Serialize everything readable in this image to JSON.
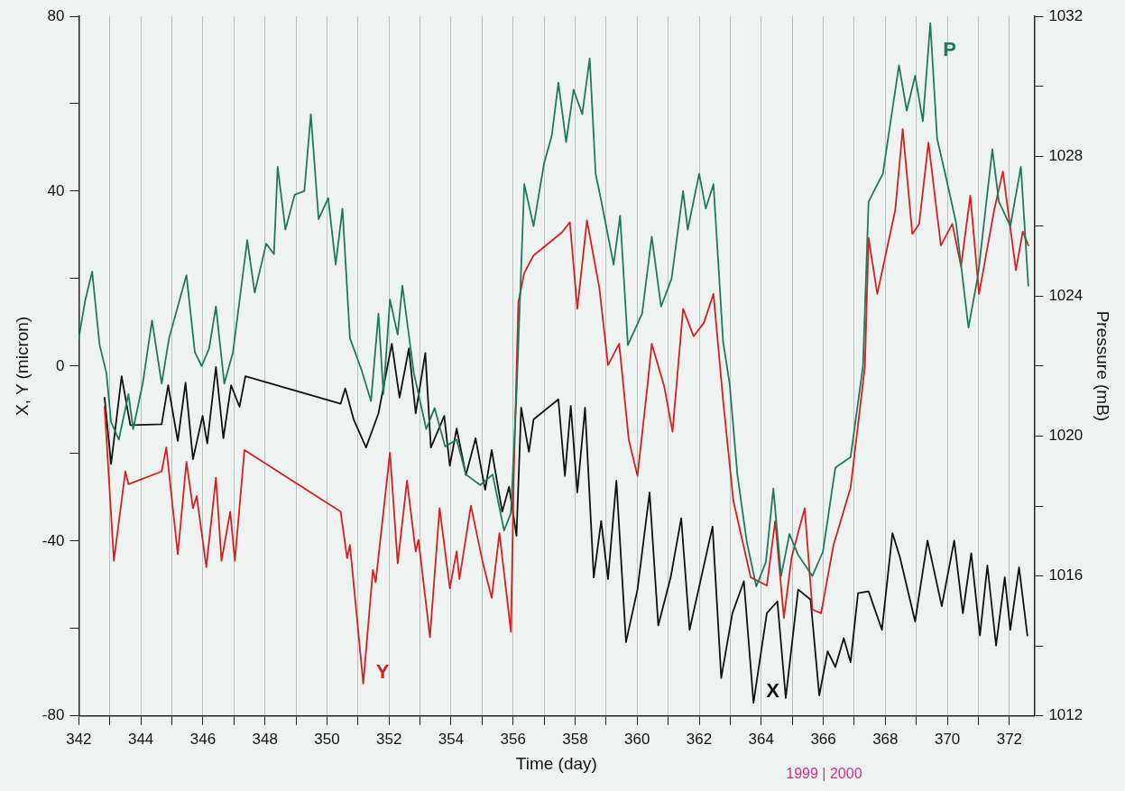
{
  "chart_data": {
    "type": "line",
    "xlabel": "Time (day)",
    "ylabel": "X, Y (micron)",
    "y2label": "Pressure (mB)",
    "xlim": [
      342,
      372.8
    ],
    "xticks": [
      342,
      {
        "value": 343,
        "label": null
      },
      344,
      {
        "value": 345,
        "label": null
      },
      346,
      {
        "value": 347,
        "label": null
      },
      348,
      {
        "value": 349,
        "label": null
      },
      350,
      {
        "value": 351,
        "label": null
      },
      352,
      {
        "value": 353,
        "label": null
      },
      354,
      {
        "value": 355,
        "label": null
      },
      356,
      {
        "value": 357,
        "label": null
      },
      358,
      {
        "value": 359,
        "label": null
      },
      360,
      {
        "value": 361,
        "label": null
      },
      362,
      {
        "value": 363,
        "label": null
      },
      364,
      {
        "value": 365,
        "label": null
      },
      366,
      {
        "value": 367,
        "label": null
      },
      368,
      {
        "value": 369,
        "label": null
      },
      370,
      {
        "value": 371,
        "label": null
      },
      372
    ],
    "ylim": [
      -80,
      80
    ],
    "yticks": [
      -80,
      {
        "value": -60,
        "label": null
      },
      -40,
      {
        "value": -20,
        "label": null
      },
      0,
      {
        "value": 20,
        "label": null
      },
      40,
      {
        "value": 60,
        "label": null
      },
      80
    ],
    "y2lim": [
      1012,
      1032
    ],
    "y2ticks": [
      1012,
      {
        "value": 1014,
        "label": null
      },
      1016,
      {
        "value": 1018,
        "label": null
      },
      1020,
      {
        "value": 1022,
        "label": null
      },
      1024,
      {
        "value": 1026,
        "label": null
      },
      1028,
      {
        "value": 1030,
        "label": null
      },
      1032
    ],
    "grid": "x",
    "legend": false,
    "marker": "none",
    "line_style": "solid",
    "series": [
      {
        "name": "P",
        "color": "#1f7a5c",
        "axis": "y2",
        "x": [
          342.0,
          342.21,
          342.43,
          342.67,
          342.89,
          343.04,
          343.29,
          343.6,
          343.75,
          344.06,
          344.36,
          344.67,
          344.91,
          345.47,
          345.74,
          345.96,
          346.2,
          346.42,
          346.69,
          346.97,
          347.43,
          347.67,
          348.04,
          348.29,
          348.41,
          348.66,
          348.96,
          349.27,
          349.48,
          349.73,
          350.04,
          350.28,
          350.5,
          350.74,
          351.11,
          351.42,
          351.66,
          351.82,
          352.03,
          352.28,
          352.43,
          352.8,
          353.2,
          353.47,
          353.81,
          354.18,
          354.48,
          354.94,
          355.34,
          355.71,
          355.93,
          356.11,
          356.36,
          356.66,
          357.0,
          357.25,
          357.46,
          357.71,
          357.95,
          358.23,
          358.47,
          358.66,
          358.87,
          359.24,
          359.45,
          359.7,
          360.16,
          360.47,
          360.77,
          361.11,
          361.48,
          361.63,
          362.0,
          362.21,
          362.46,
          362.77,
          362.98,
          363.23,
          363.53,
          363.84,
          364.15,
          364.39,
          364.64,
          364.91,
          365.19,
          365.65,
          365.99,
          366.39,
          366.88,
          367.28,
          367.46,
          367.92,
          368.44,
          368.69,
          368.96,
          369.21,
          369.45,
          369.67,
          369.98,
          370.28,
          370.68,
          370.99,
          371.45,
          371.66,
          372.03,
          372.37,
          372.61
        ],
        "values": [
          1022.8,
          1023.9,
          1024.7,
          1022.6,
          1021.8,
          1020.4,
          1019.9,
          1021.2,
          1020.2,
          1021.5,
          1023.3,
          1021.5,
          1022.8,
          1024.6,
          1022.4,
          1022.0,
          1022.5,
          1023.7,
          1021.5,
          1022.4,
          1025.6,
          1024.1,
          1025.5,
          1025.2,
          1027.7,
          1025.9,
          1026.9,
          1027.0,
          1029.2,
          1026.2,
          1026.8,
          1024.9,
          1026.5,
          1022.8,
          1021.9,
          1021.0,
          1023.5,
          1021.2,
          1023.9,
          1022.9,
          1024.3,
          1021.8,
          1020.2,
          1020.8,
          1019.7,
          1019.9,
          1018.9,
          1018.6,
          1018.9,
          1017.3,
          1017.8,
          1021.2,
          1027.2,
          1026.0,
          1027.8,
          1028.6,
          1030.1,
          1028.4,
          1029.9,
          1029.2,
          1030.8,
          1027.5,
          1026.6,
          1024.9,
          1026.3,
          1022.6,
          1023.5,
          1025.7,
          1023.7,
          1024.5,
          1027.0,
          1025.9,
          1027.5,
          1026.5,
          1027.2,
          1022.7,
          1021.5,
          1018.9,
          1017.0,
          1015.7,
          1016.4,
          1018.5,
          1016.0,
          1017.2,
          1016.6,
          1016.0,
          1016.7,
          1019.1,
          1019.4,
          1022.0,
          1026.7,
          1027.5,
          1030.6,
          1029.3,
          1030.3,
          1029.0,
          1031.8,
          1028.5,
          1027.3,
          1026.1,
          1023.1,
          1024.6,
          1028.2,
          1026.7,
          1026.0,
          1027.7,
          1024.3
        ]
      },
      {
        "name": "Y",
        "color": "#d42020",
        "x": [
          342.83,
          343.13,
          343.5,
          343.6,
          344.67,
          344.82,
          345.19,
          345.47,
          345.68,
          345.8,
          346.11,
          346.42,
          346.6,
          346.88,
          347.03,
          347.34,
          350.44,
          350.65,
          350.74,
          351.17,
          351.48,
          351.57,
          352.03,
          352.28,
          352.58,
          352.86,
          352.95,
          353.32,
          353.63,
          353.96,
          354.18,
          354.27,
          354.64,
          355.01,
          355.31,
          355.56,
          355.93,
          356.02,
          356.17,
          356.36,
          356.66,
          357.58,
          357.83,
          358.07,
          358.38,
          358.78,
          359.06,
          359.42,
          359.73,
          360.01,
          360.34,
          360.47,
          360.87,
          361.14,
          361.48,
          361.82,
          362.15,
          362.46,
          362.77,
          363.1,
          363.66,
          364.18,
          364.45,
          364.73,
          364.98,
          365.4,
          365.65,
          365.93,
          366.33,
          366.88,
          367.34,
          367.46,
          367.74,
          368.32,
          368.56,
          368.87,
          369.09,
          369.39,
          369.79,
          370.16,
          370.44,
          370.74,
          371.02,
          371.51,
          371.79,
          372.21,
          372.43,
          372.61
        ],
        "values": [
          -9.3,
          -44.5,
          -24.1,
          -27.0,
          -24.1,
          -18.6,
          -43.0,
          -21.9,
          -32.5,
          -29.7,
          -46.0,
          -25.5,
          -44.5,
          -33.3,
          -44.5,
          -19.2,
          -33.3,
          -43.9,
          -40.9,
          -72.6,
          -46.6,
          -49.4,
          -19.8,
          -45.1,
          -26.2,
          -42.4,
          -39.7,
          -62.0,
          -32.5,
          -50.8,
          -42.4,
          -48.7,
          -31.9,
          -44.5,
          -53.0,
          -38.2,
          -60.8,
          -25.5,
          14.6,
          21.3,
          25.3,
          30.6,
          32.9,
          13.1,
          33.3,
          17.9,
          0.2,
          5.1,
          -16.9,
          -25.1,
          -4.0,
          5.1,
          -4.6,
          -15.0,
          13.1,
          6.8,
          9.9,
          16.5,
          -7.8,
          -30.8,
          -48.3,
          -50.2,
          -35.4,
          -57.6,
          -43.7,
          -32.5,
          -55.7,
          -56.5,
          -40.9,
          -27.8,
          -0.2,
          29.3,
          16.5,
          35.7,
          54.2,
          30.2,
          32.5,
          51.1,
          27.6,
          32.5,
          22.8,
          39.0,
          16.5,
          35.7,
          44.5,
          21.9,
          30.8,
          27.6
        ]
      },
      {
        "name": "X",
        "color": "#111111",
        "x": [
          342.83,
          343.04,
          343.38,
          343.66,
          344.67,
          344.88,
          345.19,
          345.44,
          345.68,
          345.99,
          346.14,
          346.42,
          346.66,
          346.91,
          347.18,
          347.37,
          350.44,
          350.59,
          350.86,
          351.26,
          351.66,
          352.09,
          352.34,
          352.64,
          352.86,
          353.17,
          353.35,
          353.78,
          353.96,
          354.18,
          354.48,
          354.79,
          355.1,
          355.31,
          355.65,
          355.87,
          356.11,
          356.26,
          356.51,
          356.66,
          357.46,
          357.67,
          357.86,
          358.07,
          358.32,
          358.6,
          358.84,
          359.06,
          359.33,
          359.64,
          360.01,
          360.4,
          360.68,
          361.08,
          361.42,
          361.69,
          362.43,
          362.71,
          363.07,
          363.44,
          363.75,
          364.18,
          364.52,
          364.79,
          365.19,
          365.59,
          365.87,
          366.14,
          366.39,
          366.66,
          366.88,
          367.12,
          367.46,
          367.89,
          368.23,
          368.47,
          368.96,
          369.36,
          369.82,
          370.22,
          370.5,
          370.77,
          371.05,
          371.29,
          371.57,
          371.85,
          372.03,
          372.31,
          372.58
        ],
        "values": [
          -7.2,
          -22.4,
          -2.3,
          -13.5,
          -13.3,
          -4.4,
          -17.1,
          -3.8,
          -21.3,
          -11.4,
          -17.7,
          -0.2,
          -16.5,
          -4.4,
          -9.3,
          -2.3,
          -8.6,
          -5.1,
          -12.2,
          -18.6,
          -10.8,
          5.1,
          -7.2,
          4.0,
          -10.8,
          3.0,
          -18.6,
          -11.4,
          -22.8,
          -14.3,
          -24.9,
          -16.5,
          -28.3,
          -19.2,
          -33.3,
          -27.6,
          -38.8,
          -9.5,
          -19.6,
          -12.2,
          -7.6,
          -25.1,
          -9.1,
          -28.9,
          -9.5,
          -48.3,
          -35.4,
          -48.7,
          -26.2,
          -63.1,
          -51.1,
          -28.9,
          -59.3,
          -48.3,
          -34.8,
          -60.3,
          -36.7,
          -71.3,
          -56.5,
          -49.2,
          -77.0,
          -56.5,
          -53.8,
          -75.9,
          -51.1,
          -53.4,
          -75.3,
          -65.2,
          -68.8,
          -62.2,
          -67.7,
          -51.9,
          -51.5,
          -60.3,
          -38.2,
          -43.7,
          -58.4,
          -39.9,
          -54.9,
          -39.9,
          -56.5,
          -42.8,
          -61.6,
          -45.6,
          -63.9,
          -48.3,
          -60.3,
          -46.0,
          -61.6
        ]
      }
    ],
    "annotations": [
      "1999 | 2000"
    ]
  }
}
